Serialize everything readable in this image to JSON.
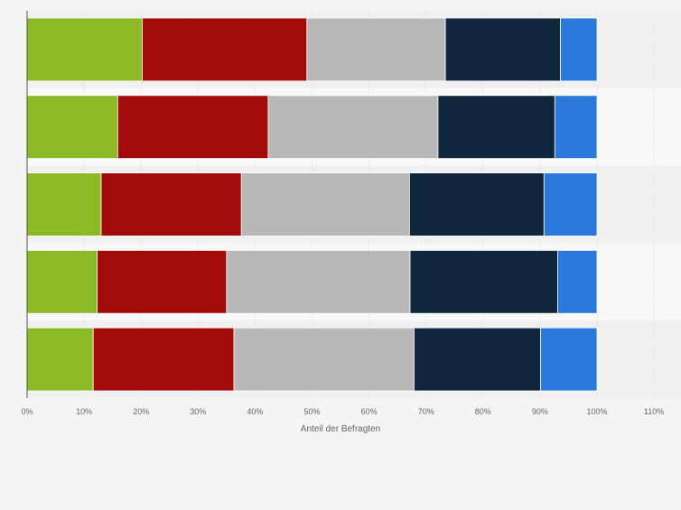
{
  "chart_data": {
    "type": "bar",
    "orientation": "horizontal",
    "stacked": true,
    "title": "",
    "xlabel": "Anteil der Befragten",
    "ylabel": "",
    "xlim": [
      0,
      110
    ],
    "x_ticks": [
      "0%",
      "10%",
      "20%",
      "30%",
      "40%",
      "50%",
      "60%",
      "70%",
      "80%",
      "90%",
      "100%",
      "110%"
    ],
    "grid": true,
    "legend": "none",
    "categories": [
      "",
      "",
      "",
      "",
      ""
    ],
    "series": [
      {
        "name": "",
        "color": "#8bba26",
        "values": [
          20.2,
          15.9,
          13.0,
          12.3,
          11.6
        ]
      },
      {
        "name": "",
        "color": "#a30b0b",
        "values": [
          28.9,
          26.4,
          24.6,
          22.7,
          24.7
        ]
      },
      {
        "name": "",
        "color": "#b8b8b8",
        "values": [
          24.3,
          29.8,
          29.5,
          32.2,
          31.6
        ]
      },
      {
        "name": "",
        "color": "#10263d",
        "values": [
          20.2,
          20.5,
          23.6,
          25.9,
          22.2
        ]
      },
      {
        "name": "",
        "color": "#2b78dc",
        "values": [
          6.4,
          7.4,
          9.3,
          6.9,
          9.9
        ]
      }
    ]
  }
}
